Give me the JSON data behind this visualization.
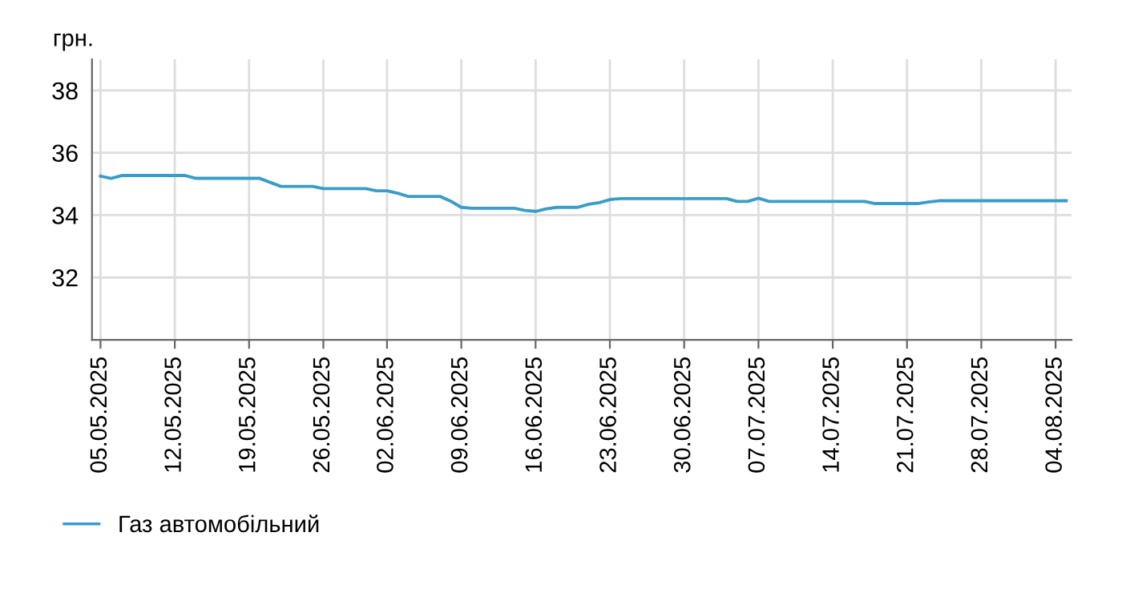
{
  "chart_data": {
    "type": "line",
    "ylabel": "грн.",
    "categories": [
      "05.05.2025",
      null,
      null,
      null,
      null,
      null,
      null,
      "12.05.2025",
      null,
      null,
      null,
      null,
      null,
      null,
      "19.05.2025",
      null,
      null,
      null,
      null,
      null,
      null,
      "26.05.2025",
      null,
      null,
      null,
      null,
      null,
      "02.06.2025",
      null,
      null,
      null,
      null,
      null,
      null,
      "09.06.2025",
      null,
      null,
      null,
      null,
      null,
      null,
      "16.06.2025",
      null,
      null,
      null,
      null,
      null,
      null,
      "23.06.2025",
      null,
      null,
      null,
      null,
      null,
      null,
      "30.06.2025",
      null,
      null,
      null,
      null,
      null,
      null,
      "07.07.2025",
      null,
      null,
      null,
      null,
      null,
      null,
      "14.07.2025",
      null,
      null,
      null,
      null,
      null,
      null,
      "21.07.2025",
      null,
      null,
      null,
      null,
      null,
      null,
      "28.07.2025",
      null,
      null,
      null,
      null,
      null,
      null,
      "04.08.2025",
      null
    ],
    "series": [
      {
        "name": "Газ автомобільний",
        "color": "#3a9cc8",
        "values": [
          35.25,
          35.18,
          35.27,
          35.27,
          35.27,
          35.27,
          35.27,
          35.27,
          35.27,
          35.18,
          35.18,
          35.18,
          35.18,
          35.18,
          35.18,
          35.18,
          35.05,
          34.92,
          34.92,
          34.92,
          34.92,
          34.85,
          34.85,
          34.85,
          34.85,
          34.85,
          34.78,
          34.78,
          34.7,
          34.6,
          34.6,
          34.6,
          34.6,
          34.45,
          34.25,
          34.22,
          34.22,
          34.22,
          34.22,
          34.22,
          34.15,
          34.12,
          34.2,
          34.25,
          34.25,
          34.25,
          34.35,
          34.4,
          34.5,
          34.53,
          34.53,
          34.53,
          34.53,
          34.53,
          34.53,
          34.53,
          34.53,
          34.53,
          34.53,
          34.53,
          34.44,
          34.44,
          34.54,
          34.44,
          34.44,
          34.44,
          34.44,
          34.44,
          34.44,
          34.44,
          34.44,
          34.44,
          34.44,
          34.37,
          34.37,
          34.37,
          34.37,
          34.37,
          34.42,
          34.46,
          34.46,
          34.46,
          34.46,
          34.46,
          34.46,
          34.46,
          34.46,
          34.46,
          34.46,
          34.46,
          34.46,
          34.46
        ]
      }
    ],
    "ylim": [
      30,
      39
    ],
    "yticks": [
      32,
      34,
      36,
      38
    ],
    "grid": true,
    "legend": "bottom left",
    "marker": "none",
    "line_style": "solid"
  }
}
